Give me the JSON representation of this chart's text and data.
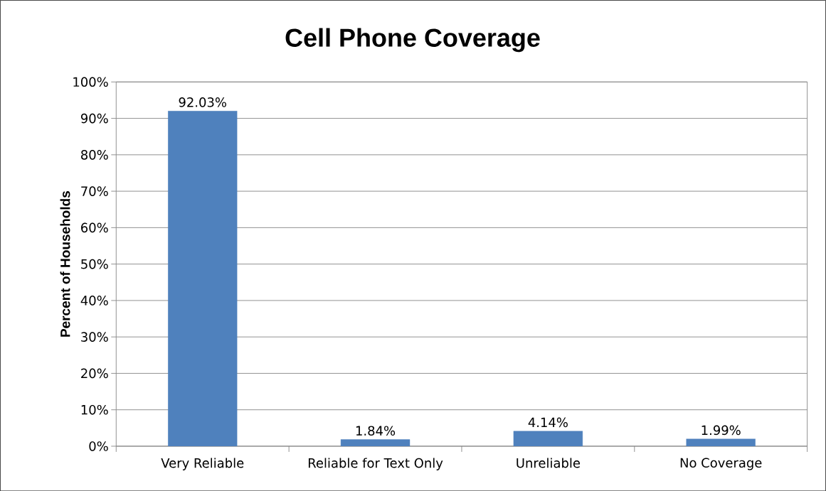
{
  "chart_data": {
    "type": "bar",
    "title": "Cell Phone Coverage",
    "ylabel": "Percent of Households",
    "categories": [
      "Very Reliable",
      "Reliable for Text Only",
      "Unreliable",
      "No Coverage"
    ],
    "values": [
      92.03,
      1.84,
      4.14,
      1.99
    ],
    "value_labels": [
      "92.03%",
      "1.84%",
      "4.14%",
      "1.99%"
    ],
    "color": "#4f81bd",
    "ylim": [
      0,
      100
    ],
    "yticks": [
      {
        "value": 0,
        "label": "0%"
      },
      {
        "value": 10,
        "label": "10%"
      },
      {
        "value": 20,
        "label": "20%"
      },
      {
        "value": 30,
        "label": "30%"
      },
      {
        "value": 40,
        "label": "40%"
      },
      {
        "value": 50,
        "label": "50%"
      },
      {
        "value": 60,
        "label": "60%"
      },
      {
        "value": 70,
        "label": "70%"
      },
      {
        "value": 80,
        "label": "80%"
      },
      {
        "value": 90,
        "label": "90%"
      },
      {
        "value": 100,
        "label": "100%"
      }
    ],
    "grid": "y"
  }
}
